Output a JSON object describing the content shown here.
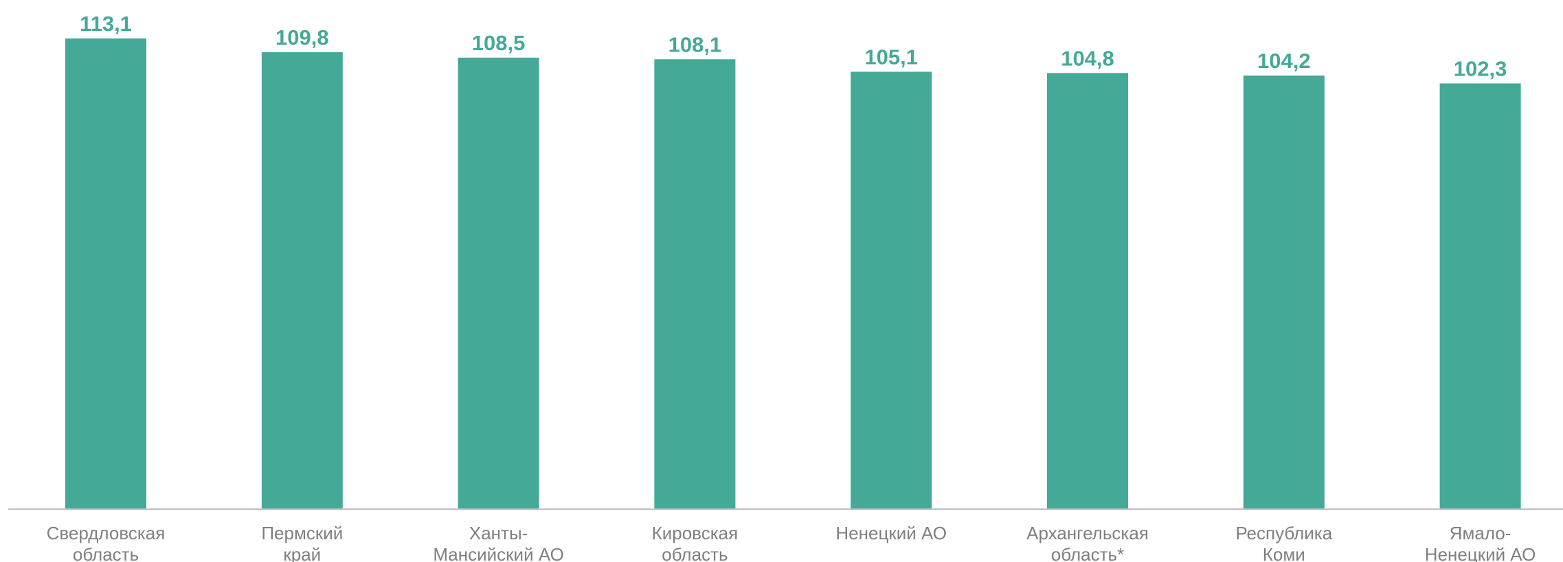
{
  "chart_data": {
    "type": "bar",
    "categories": [
      [
        "Свердловская",
        "область"
      ],
      [
        "Пермский",
        "край"
      ],
      [
        "Ханты-",
        "Мансийский АО"
      ],
      [
        "Кировская",
        "область"
      ],
      [
        "Ненецкий АО"
      ],
      [
        "Архангельская",
        "область*"
      ],
      [
        "Республика",
        "Коми"
      ],
      [
        "Ямало-",
        "Ненецкий АО"
      ]
    ],
    "values": [
      113.1,
      109.8,
      108.5,
      108.1,
      105.1,
      104.8,
      104.2,
      102.3
    ],
    "value_labels": [
      "113,1",
      "109,8",
      "108,5",
      "108,1",
      "105,1",
      "104,8",
      "104,2",
      "102,3"
    ],
    "ylim": [
      0,
      115
    ],
    "grid": false,
    "legend": "none",
    "title": "",
    "xlabel": "",
    "ylabel": "",
    "colors": {
      "bar": "#44A997",
      "value_label": "#44A997",
      "category_label": "#7F7F7F",
      "axis": "#BFBFBF"
    }
  }
}
